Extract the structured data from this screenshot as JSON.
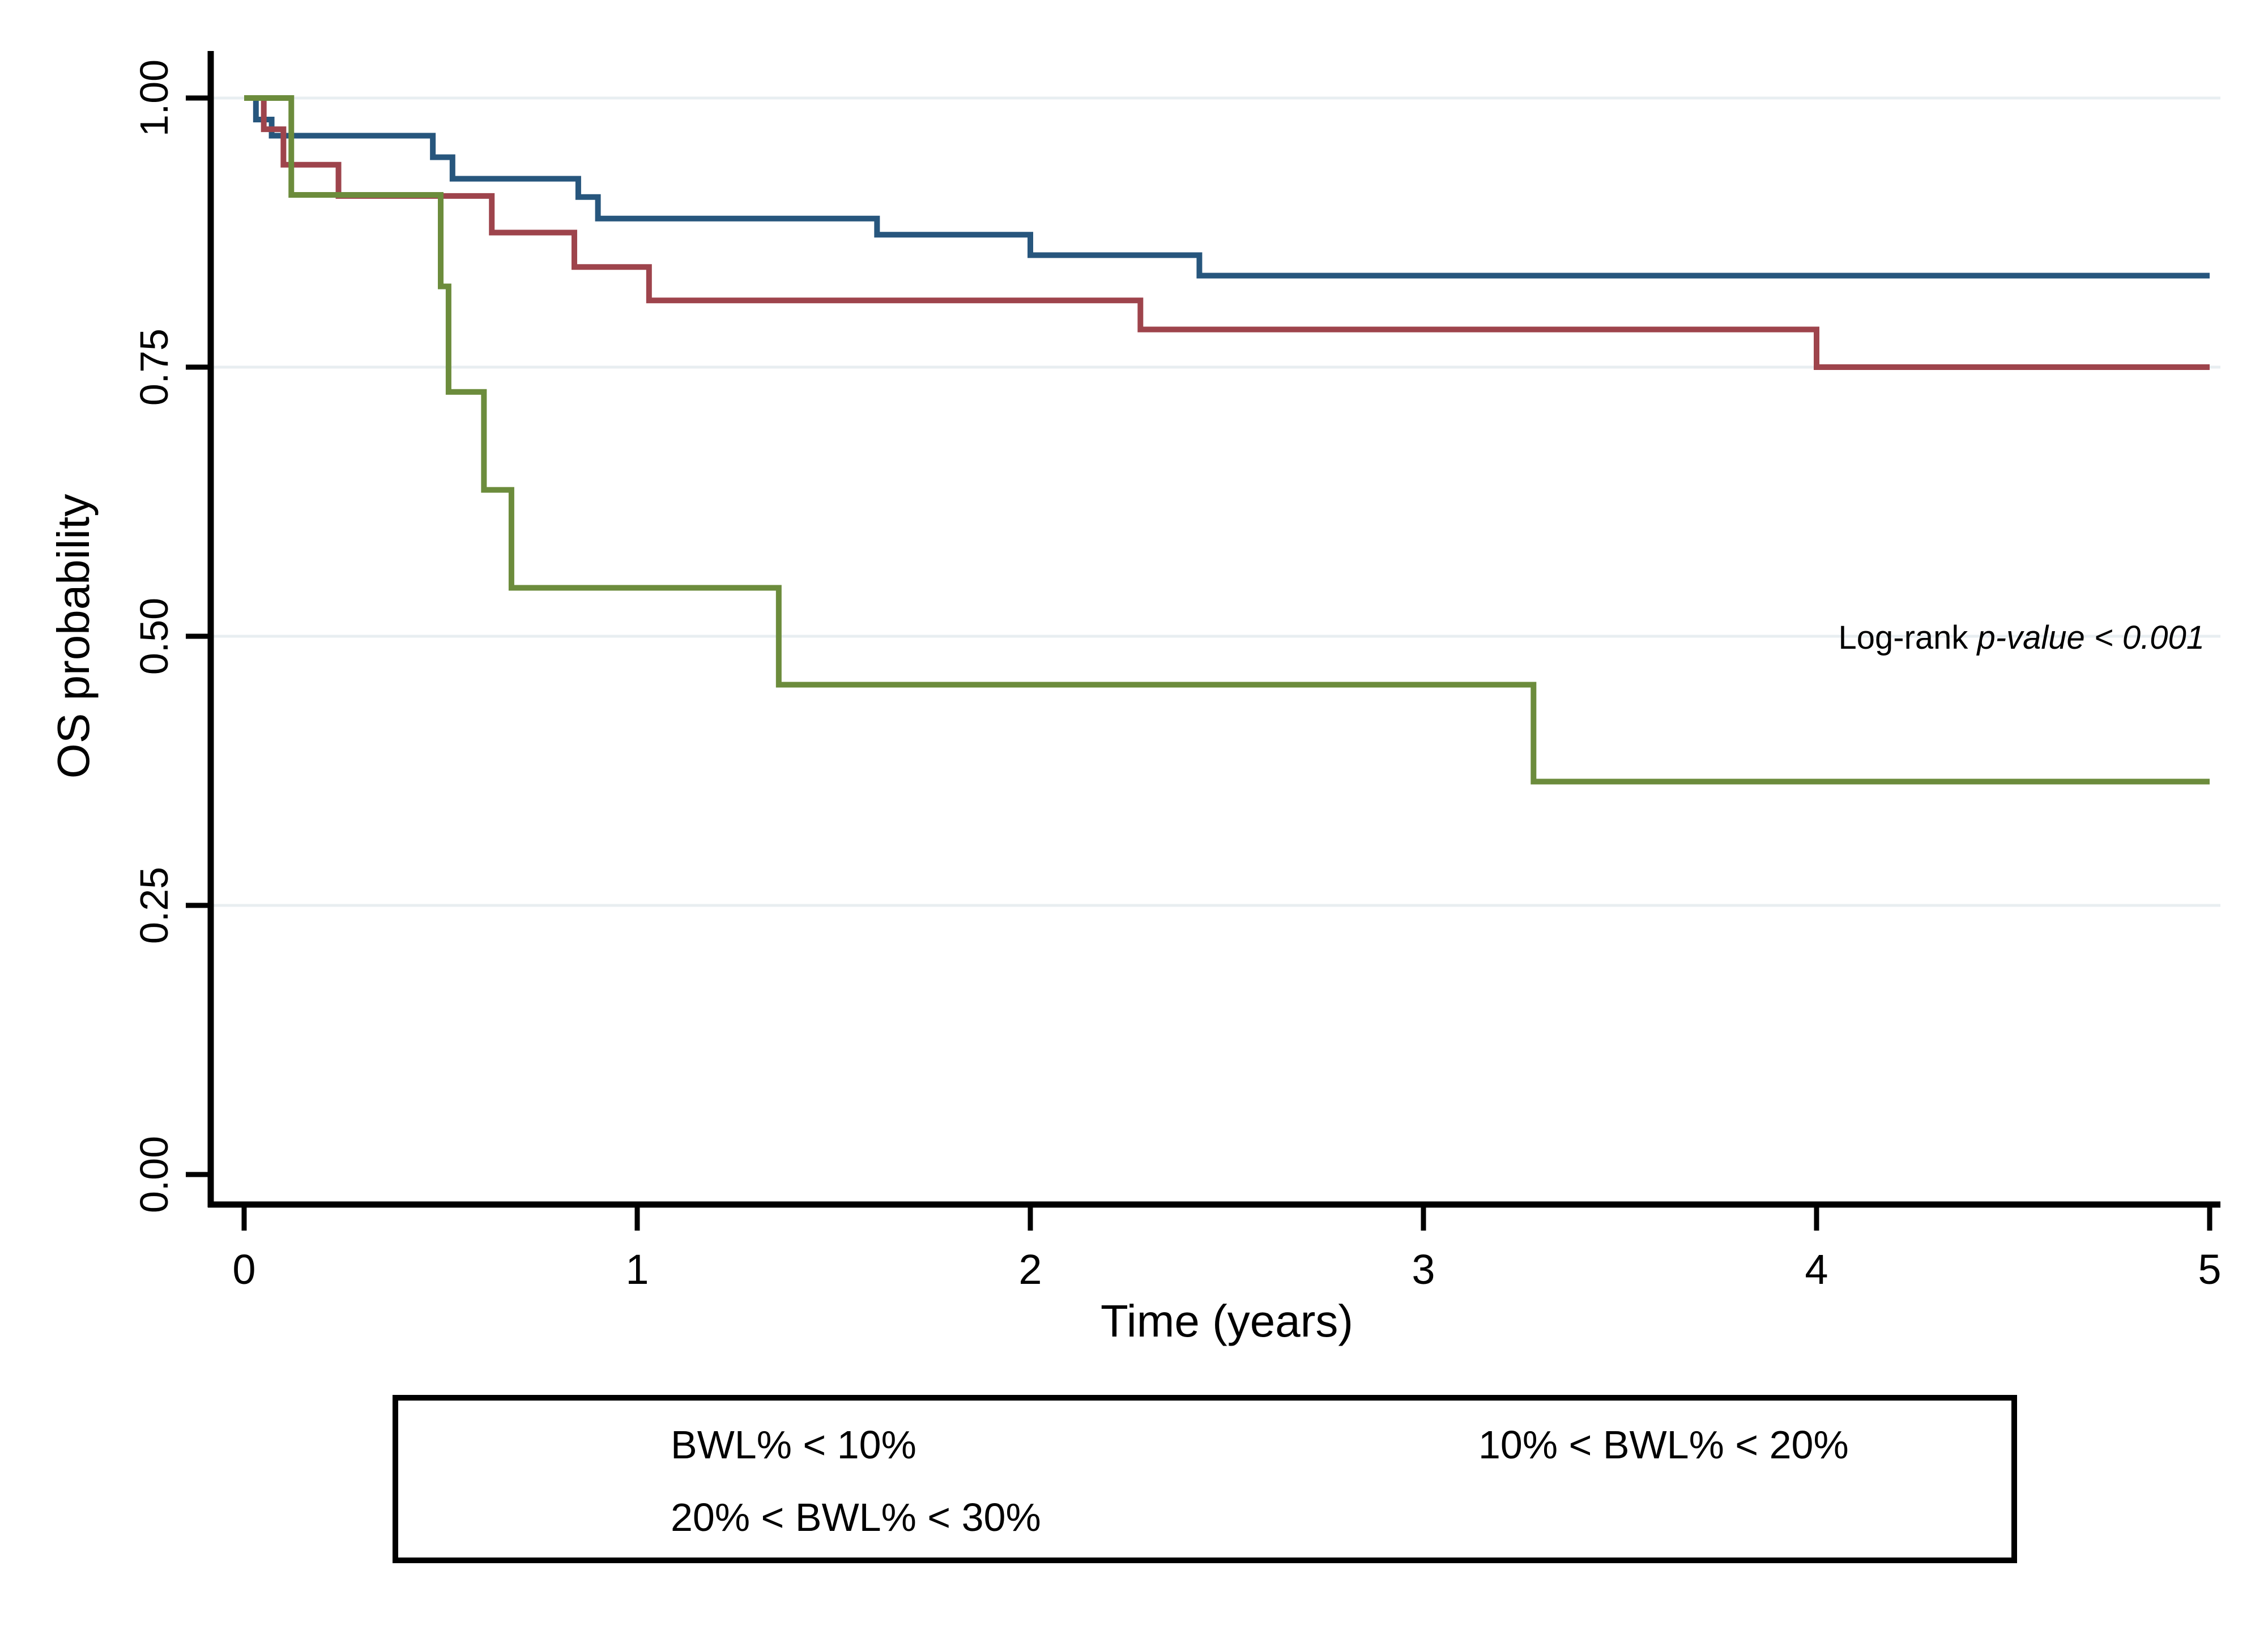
{
  "figure": {
    "background": "#ffffff",
    "axis_color": "#000000",
    "gridline_color": "#E8EEF1"
  },
  "axes": {
    "xlabel": "Time (years)",
    "ylabel": "OS probability",
    "xtick_labels": [
      "0",
      "1",
      "2",
      "3",
      "4",
      "5"
    ],
    "ytick_labels": [
      "0.00",
      "0.25",
      "0.50",
      "0.75",
      "1.00"
    ]
  },
  "annotation": {
    "normal": "Log-rank",
    "italic": "p-value < 0.001"
  },
  "legend": {
    "items": [
      {
        "label": "BWL% < 10%",
        "color": "#27567D"
      },
      {
        "label": "10% < BWL% < 20%",
        "color": "#9E444C"
      },
      {
        "label": "20% < BWL% < 30%",
        "color": "#6C8C3C"
      }
    ]
  },
  "chart_data": {
    "type": "line",
    "subtype": "kaplan-meier-step",
    "title": "",
    "xlabel": "Time (years)",
    "ylabel": "OS probability",
    "xlim": [
      0,
      5
    ],
    "ylim": [
      0,
      1
    ],
    "xticks": [
      0,
      1,
      2,
      3,
      4,
      5
    ],
    "yticks": [
      0.0,
      0.25,
      0.5,
      0.75,
      1.0
    ],
    "grid": "horizontal gridlines at y = 0.25, 0.50, 0.75, 1.00",
    "legend_position": "bottom",
    "annotation": "Log-rank p-value < 0.001",
    "series": [
      {
        "name": "BWL% < 10%",
        "color": "#27567D",
        "steps": [
          [
            0,
            1.0
          ],
          [
            0.03,
            0.98
          ],
          [
            0.07,
            0.965
          ],
          [
            0.48,
            0.945
          ],
          [
            0.53,
            0.925
          ],
          [
            0.85,
            0.908
          ],
          [
            0.9,
            0.888
          ],
          [
            1.61,
            0.873
          ],
          [
            2.0,
            0.854
          ],
          [
            2.43,
            0.835
          ],
          [
            5.0,
            0.835
          ]
        ]
      },
      {
        "name": "10% < BWL% < 20%",
        "color": "#9E444C",
        "steps": [
          [
            0,
            1.0
          ],
          [
            0.05,
            0.971
          ],
          [
            0.1,
            0.938
          ],
          [
            0.24,
            0.909
          ],
          [
            0.63,
            0.875
          ],
          [
            0.84,
            0.843
          ],
          [
            1.03,
            0.812
          ],
          [
            2.28,
            0.785
          ],
          [
            4.0,
            0.75
          ],
          [
            5.0,
            0.75
          ]
        ]
      },
      {
        "name": "20% < BWL% < 30%",
        "color": "#6C8C3C",
        "steps": [
          [
            0,
            1.0
          ],
          [
            0.12,
            0.91
          ],
          [
            0.5,
            0.825
          ],
          [
            0.52,
            0.727
          ],
          [
            0.61,
            0.636
          ],
          [
            0.68,
            0.545
          ],
          [
            1.36,
            0.455
          ],
          [
            3.28,
            0.365
          ],
          [
            5.0,
            0.365
          ]
        ]
      }
    ]
  }
}
